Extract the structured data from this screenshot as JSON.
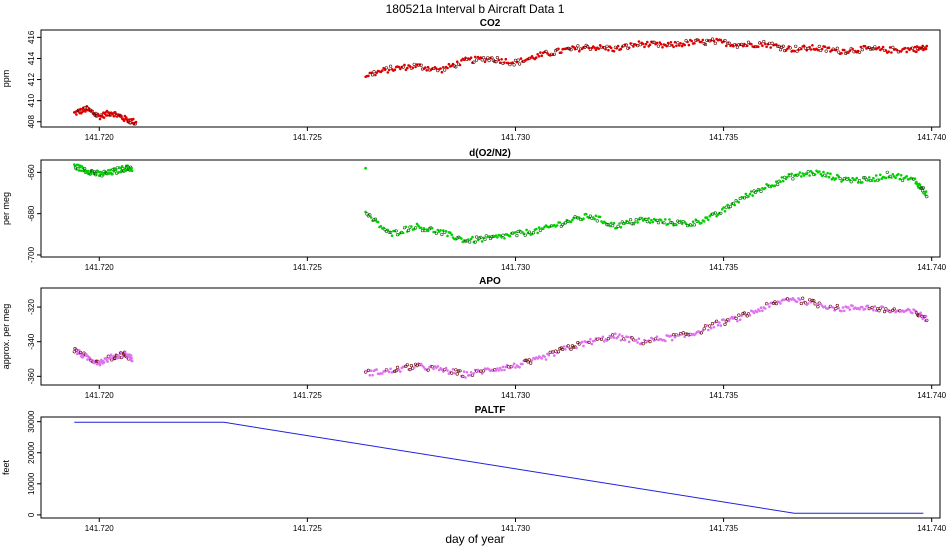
{
  "title": "180521a   Interval b Aircraft Data 1",
  "xlabel": "day of year",
  "chart_data": [
    {
      "type": "scatter",
      "title": "CO2",
      "ylabel": "ppm",
      "color": "#e00000",
      "xlim": [
        141.7186,
        141.7402
      ],
      "ylim": [
        407.5,
        416.7
      ],
      "xticks": [
        141.72,
        141.725,
        141.73,
        141.735,
        141.74
      ],
      "xtick_labels": [
        "141.720",
        "141.725",
        "141.730",
        "141.735",
        "141.740"
      ],
      "yticks": [
        408,
        410,
        412,
        414,
        416
      ],
      "ytick_labels": [
        "408",
        "410",
        "412",
        "414",
        "416"
      ],
      "segments": [
        {
          "x": [
            141.7194,
            141.7197,
            141.72,
            141.7203,
            141.7206,
            141.7209
          ],
          "y": [
            408.8,
            409.2,
            408.5,
            408.9,
            408.3,
            407.9
          ]
        },
        {
          "x": [
            141.7264,
            141.727,
            141.7276,
            141.7282,
            141.7288,
            141.7294,
            141.73,
            141.7306,
            141.7312,
            141.7318,
            141.7324,
            141.733,
            141.7336,
            141.7342,
            141.7348,
            141.7354,
            141.736,
            141.7366,
            141.7372,
            141.7378,
            141.7384,
            141.739,
            141.7396,
            141.7399
          ],
          "y": [
            412.4,
            413.0,
            413.3,
            412.9,
            413.8,
            414.0,
            413.6,
            414.3,
            414.8,
            415.1,
            414.9,
            415.4,
            415.2,
            415.5,
            415.6,
            415.3,
            415.4,
            414.9,
            415.0,
            414.7,
            414.9,
            414.8,
            414.9,
            415.0
          ]
        }
      ]
    },
    {
      "type": "scatter",
      "title": "d(O2/N2)",
      "ylabel": "per meg",
      "color": "#00d000",
      "xlim": [
        141.7186,
        141.7402
      ],
      "ylim": [
        -701,
        -654
      ],
      "xticks": [
        141.72,
        141.725,
        141.73,
        141.735,
        141.74
      ],
      "xtick_labels": [
        "141.720",
        "141.725",
        "141.730",
        "141.735",
        "141.740"
      ],
      "yticks": [
        -700,
        -680,
        -660
      ],
      "ytick_labels": [
        "-700",
        "-680",
        "-660"
      ],
      "segments": [
        {
          "x": [
            141.7194,
            141.7197,
            141.72,
            141.7203,
            141.7206,
            141.7208
          ],
          "y": [
            -657,
            -659,
            -661,
            -660,
            -658,
            -658
          ]
        },
        {
          "x": [
            141.7264
          ],
          "y": [
            -658
          ]
        },
        {
          "x": [
            141.7264,
            141.727,
            141.7276,
            141.7282,
            141.7288,
            141.7294,
            141.73,
            141.7306,
            141.7312,
            141.7318,
            141.7324,
            141.733,
            141.7336,
            141.7342,
            141.7348,
            141.7354,
            141.736,
            141.7366,
            141.7372,
            141.7378,
            141.7384,
            141.739,
            141.7396,
            141.7399
          ],
          "y": [
            -680,
            -690,
            -686,
            -689,
            -693,
            -692,
            -690,
            -688,
            -684,
            -681,
            -686,
            -683,
            -684,
            -685,
            -681,
            -673,
            -667,
            -662,
            -660,
            -663,
            -664,
            -661,
            -664,
            -671
          ]
        }
      ]
    },
    {
      "type": "scatter",
      "title": "APO",
      "ylabel": "approx. per meg",
      "color": "#e070f0",
      "xlim": [
        141.7186,
        141.7402
      ],
      "ylim": [
        -365,
        -309
      ],
      "xticks": [
        141.72,
        141.725,
        141.73,
        141.735,
        141.74
      ],
      "xtick_labels": [
        "141.720",
        "141.725",
        "141.730",
        "141.735",
        "141.740"
      ],
      "yticks": [
        -360,
        -340,
        -320
      ],
      "ytick_labels": [
        "-360",
        "-340",
        "-320"
      ],
      "segments": [
        {
          "x": [
            141.7194,
            141.7197,
            141.72,
            141.7203,
            141.7206,
            141.7208
          ],
          "y": [
            -345,
            -349,
            -352,
            -349,
            -347,
            -350
          ]
        },
        {
          "x": [
            141.7264,
            141.727,
            141.7276,
            141.7282,
            141.7288,
            141.7294,
            141.73,
            141.7306,
            141.7312,
            141.7318,
            141.7324,
            141.733,
            141.7336,
            141.7342,
            141.7348,
            141.7354,
            141.736,
            141.7366,
            141.7372,
            141.7378,
            141.7384,
            141.739,
            141.7396,
            141.7399
          ],
          "y": [
            -358,
            -357,
            -354,
            -356,
            -359,
            -356,
            -354,
            -350,
            -344,
            -340,
            -337,
            -340,
            -338,
            -336,
            -330,
            -326,
            -320,
            -315,
            -318,
            -321,
            -320,
            -322,
            -323,
            -327
          ]
        }
      ]
    },
    {
      "type": "line",
      "title": "PALTF",
      "ylabel": "feet",
      "color": "#2020e0",
      "xlim": [
        141.7186,
        141.7402
      ],
      "ylim": [
        -1000,
        31500
      ],
      "xticks": [
        141.72,
        141.725,
        141.73,
        141.735,
        141.74
      ],
      "xtick_labels": [
        "141.720",
        "141.725",
        "141.730",
        "141.735",
        "141.740"
      ],
      "yticks": [
        0,
        10000,
        20000,
        30000
      ],
      "ytick_labels": [
        "0",
        "10000",
        "20000",
        "30000"
      ],
      "x": [
        141.7194,
        141.72,
        141.723,
        141.7367,
        141.7398
      ],
      "y": [
        29800,
        29800,
        29800,
        500,
        500
      ]
    }
  ]
}
